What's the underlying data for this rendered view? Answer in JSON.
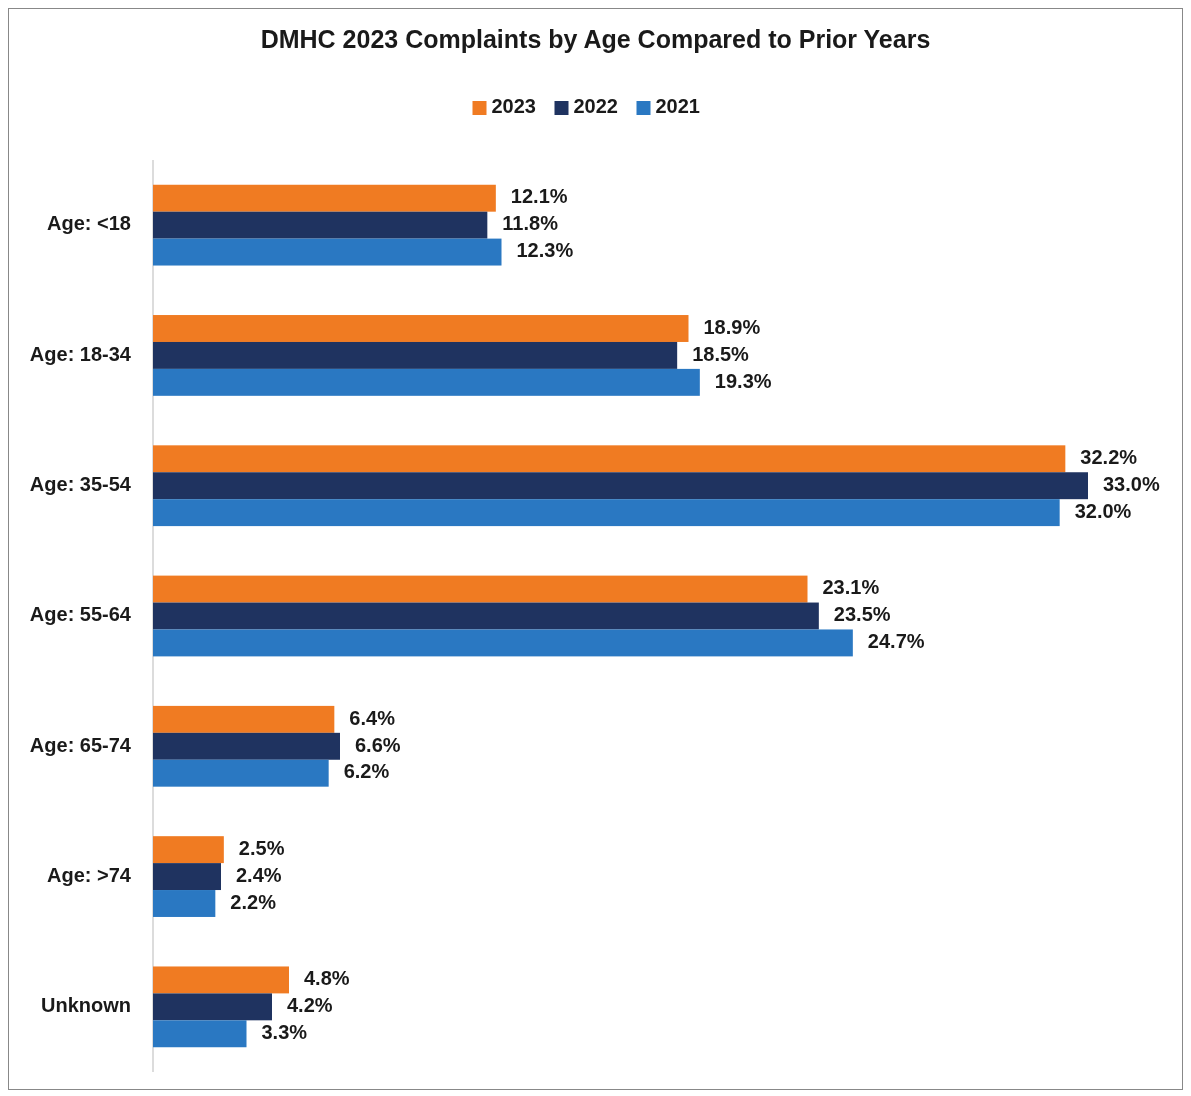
{
  "chart_data": {
    "type": "bar",
    "orientation": "horizontal",
    "title": "DMHC 2023 Complaints by Age Compared to Prior Years",
    "categories": [
      "Age: <18",
      "Age: 18-34",
      "Age: 35-54",
      "Age: 55-64",
      "Age: 65-74",
      "Age: >74",
      "Unknown"
    ],
    "series": [
      {
        "name": "2023",
        "color": "#f07b22",
        "values": [
          12.1,
          18.9,
          32.2,
          23.1,
          6.4,
          2.5,
          4.8
        ],
        "value_labels": [
          "12.1%",
          "18.9%",
          "32.2%",
          "23.1%",
          "6.4%",
          "2.5%",
          "4.8%"
        ]
      },
      {
        "name": "2022",
        "color": "#1f3360",
        "values": [
          11.8,
          18.5,
          33.0,
          23.5,
          6.6,
          2.4,
          4.2
        ],
        "value_labels": [
          "11.8%",
          "18.5%",
          "33.0%",
          "23.5%",
          "6.6%",
          "2.4%",
          "4.2%"
        ]
      },
      {
        "name": "2021",
        "color": "#2a78c2",
        "values": [
          12.3,
          19.3,
          32.0,
          24.7,
          6.2,
          2.2,
          3.3
        ],
        "value_labels": [
          "12.3%",
          "19.3%",
          "32.0%",
          "24.7%",
          "6.2%",
          "2.2%",
          "3.3%"
        ]
      }
    ],
    "legend": "top"
  }
}
